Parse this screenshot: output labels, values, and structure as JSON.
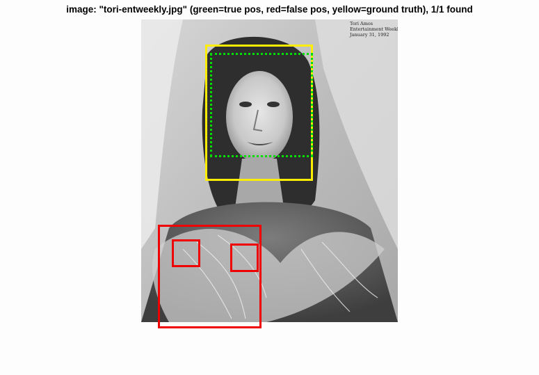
{
  "figure": {
    "title": "image: \"tori-entweekly.jpg\" (green=true pos, red=false pos, yellow=ground truth), 1/1 found"
  },
  "photo": {
    "caption_lines": [
      "Tori Amos",
      "Entertainment Weekly,",
      "January 31, 1992"
    ]
  },
  "legend": {
    "true_pos_color": "#00dd00",
    "false_pos_color": "#ee0000",
    "ground_truth_color": "#ffee00"
  },
  "detections": {
    "ground_truth_count": 1,
    "true_positive_count": 1,
    "false_positive_count": 3
  }
}
